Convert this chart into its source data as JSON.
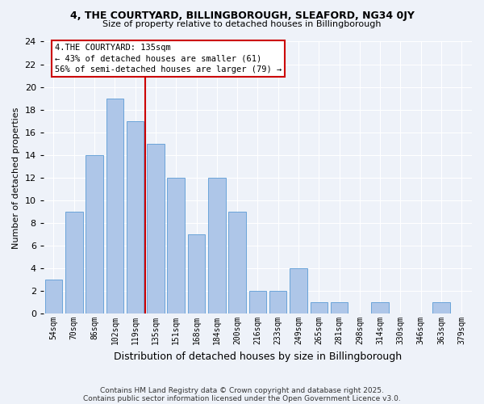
{
  "title1": "4, THE COURTYARD, BILLINGBOROUGH, SLEAFORD, NG34 0JY",
  "title2": "Size of property relative to detached houses in Billingborough",
  "xlabel": "Distribution of detached houses by size in Billingborough",
  "ylabel": "Number of detached properties",
  "categories": [
    "54sqm",
    "70sqm",
    "86sqm",
    "102sqm",
    "119sqm",
    "135sqm",
    "151sqm",
    "168sqm",
    "184sqm",
    "200sqm",
    "216sqm",
    "233sqm",
    "249sqm",
    "265sqm",
    "281sqm",
    "298sqm",
    "314sqm",
    "330sqm",
    "346sqm",
    "363sqm",
    "379sqm"
  ],
  "values": [
    3,
    9,
    14,
    19,
    17,
    15,
    12,
    7,
    12,
    9,
    2,
    2,
    4,
    1,
    1,
    0,
    1,
    0,
    0,
    1,
    0
  ],
  "bar_color": "#aec6e8",
  "bar_edge_color": "#5b9bd5",
  "marker_index": 5,
  "annotation_label": "4.THE COURTYARD: 135sqm",
  "annotation_line1": "← 43% of detached houses are smaller (61)",
  "annotation_line2": "56% of semi-detached houses are larger (79) →",
  "marker_color": "#cc0000",
  "ylim": [
    0,
    24
  ],
  "yticks": [
    0,
    2,
    4,
    6,
    8,
    10,
    12,
    14,
    16,
    18,
    20,
    22,
    24
  ],
  "footer1": "Contains HM Land Registry data © Crown copyright and database right 2025.",
  "footer2": "Contains public sector information licensed under the Open Government Licence v3.0.",
  "bg_color": "#eef2f9"
}
